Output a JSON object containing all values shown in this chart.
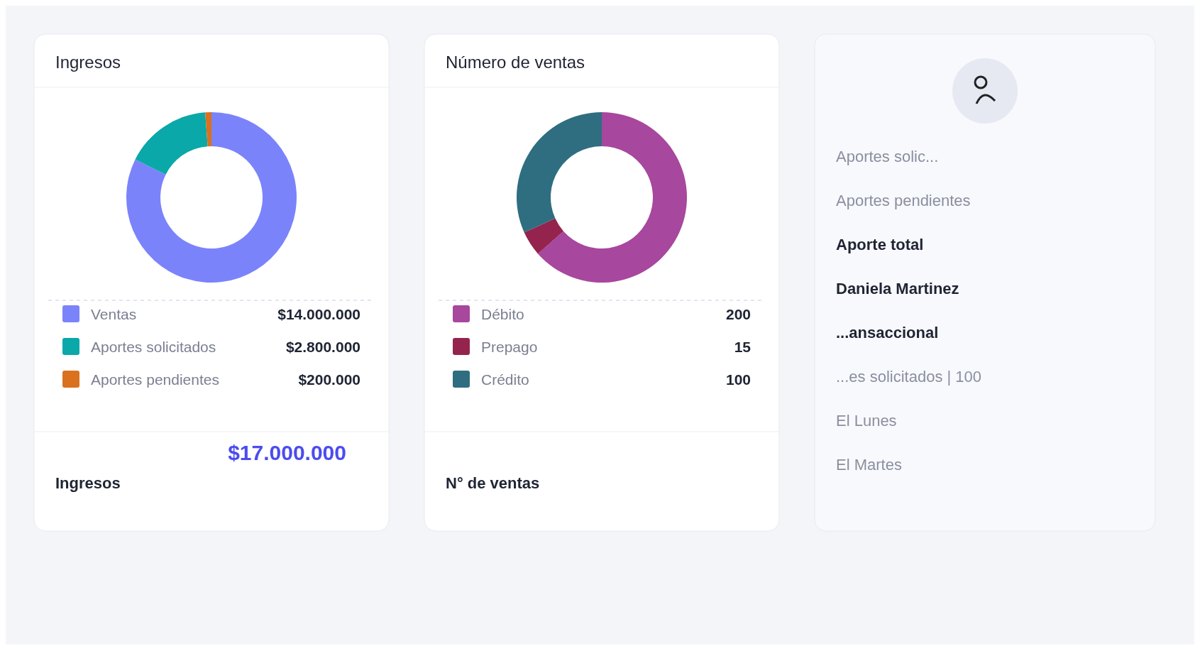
{
  "chart_data": [
    {
      "type": "donut",
      "title": "Ingresos",
      "categories": [
        "Ventas",
        "Aportes solicitados",
        "Aportes pendientes"
      ],
      "values": [
        14000000,
        2800000,
        200000
      ],
      "colors": [
        "#7b83fb",
        "#0aa8a8",
        "#d9711f"
      ],
      "value_labels": [
        "$14.000.000",
        "$2.800.000",
        "$200.000"
      ],
      "legend": "bottom",
      "annotations": [
        "Ingresos",
        "$17.000.000"
      ]
    },
    {
      "type": "donut",
      "title": "Número de ventas",
      "categories": [
        "Débito",
        "Prepago",
        "Crédito"
      ],
      "values": [
        200,
        15,
        100
      ],
      "colors": [
        "#a7479e",
        "#94244d",
        "#2e6e80"
      ],
      "data_labels": true,
      "legend": "bottom",
      "annotations": [
        "N° de ventas"
      ]
    },
    {
      "type": "other",
      "annotations": [
        "Aportes solic...",
        "Aportes pendientes",
        "Aporte total",
        "Daniela Martinez",
        "...ansaccional",
        "...es solicitados | 100",
        "El Lunes",
        "El Martes"
      ]
    }
  ]
}
